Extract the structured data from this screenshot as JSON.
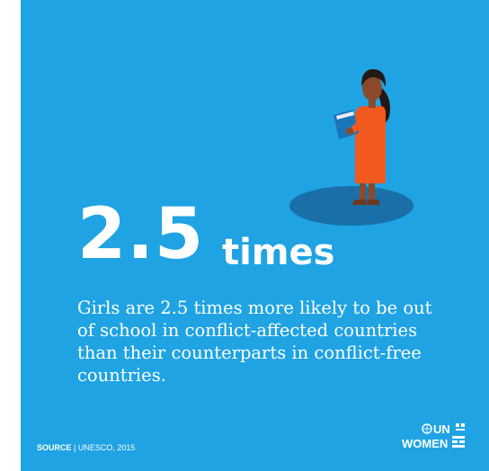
{
  "headline": {
    "number": "2.5",
    "unit": "times"
  },
  "description": "Girls are 2.5 times more likely to be out of school in conflict-affected countries than their counterparts in conflict-free countries.",
  "footer": {
    "source_label": "SOURCE",
    "separator": "|",
    "source_text": "UNESCO, 2015",
    "logo_top": "UN",
    "logo_bottom": "WOMEN"
  },
  "colors": {
    "background": "#1fa3e3",
    "shadow": "#1a6fa8",
    "dress": "#f2591f",
    "skin": "#8a4a2b",
    "hair": "#231815",
    "book": "#1b74b8"
  },
  "icons": {
    "figure": "girl-reading-book-illustration",
    "logo": "un-women-logo"
  }
}
